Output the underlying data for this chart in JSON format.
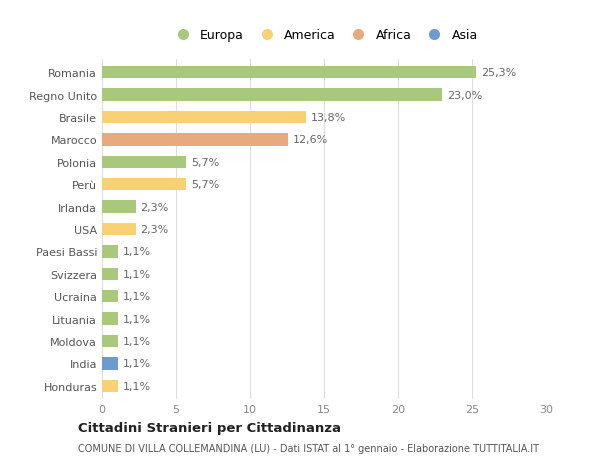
{
  "countries": [
    "Romania",
    "Regno Unito",
    "Brasile",
    "Marocco",
    "Polonia",
    "Perù",
    "Irlanda",
    "USA",
    "Paesi Bassi",
    "Svizzera",
    "Ucraina",
    "Lituania",
    "Moldova",
    "India",
    "Honduras"
  ],
  "values": [
    25.3,
    23.0,
    13.8,
    12.6,
    5.7,
    5.7,
    2.3,
    2.3,
    1.1,
    1.1,
    1.1,
    1.1,
    1.1,
    1.1,
    1.1
  ],
  "labels": [
    "25,3%",
    "23,0%",
    "13,8%",
    "12,6%",
    "5,7%",
    "5,7%",
    "2,3%",
    "2,3%",
    "1,1%",
    "1,1%",
    "1,1%",
    "1,1%",
    "1,1%",
    "1,1%",
    "1,1%"
  ],
  "continents": [
    "Europa",
    "Europa",
    "America",
    "Africa",
    "Europa",
    "America",
    "Europa",
    "America",
    "Europa",
    "Europa",
    "Europa",
    "Europa",
    "Europa",
    "Asia",
    "America"
  ],
  "continent_colors": {
    "Europa": "#a8c87e",
    "America": "#f7d173",
    "Africa": "#e8a97c",
    "Asia": "#6b9bcf"
  },
  "legend_order": [
    "Europa",
    "America",
    "Africa",
    "Asia"
  ],
  "xlim": [
    0,
    30
  ],
  "xticks": [
    0,
    5,
    10,
    15,
    20,
    25,
    30
  ],
  "title": "Cittadini Stranieri per Cittadinanza",
  "subtitle": "COMUNE DI VILLA COLLEMANDINA (LU) - Dati ISTAT al 1° gennaio - Elaborazione TUTTITALIA.IT",
  "bg_color": "#ffffff",
  "grid_color": "#dddddd",
  "bar_height": 0.55,
  "label_fontsize": 8,
  "tick_fontsize": 8
}
